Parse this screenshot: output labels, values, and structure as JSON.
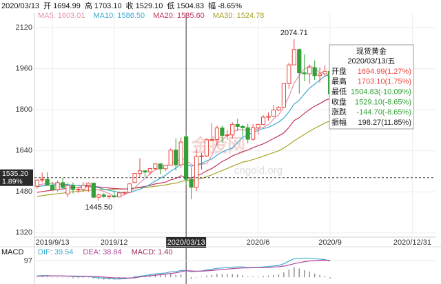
{
  "chart_data": [
    {
      "type": "candlestick",
      "header": {
        "date": "2020/03/13",
        "items": [
          {
            "label": "开",
            "value": "1694.99"
          },
          {
            "label": "高",
            "value": "1703.10"
          },
          {
            "label": "收",
            "value": "1529.10"
          },
          {
            "label": "低",
            "value": "1504.83"
          },
          {
            "label": "幅",
            "value": "-8.65%"
          }
        ]
      },
      "categories": [
        null,
        null,
        null,
        "2019/9/13",
        null,
        null,
        null,
        null,
        null,
        null,
        null,
        null,
        null,
        null,
        null,
        "2019/12",
        null,
        null,
        null,
        null,
        null,
        null,
        null,
        null,
        null,
        null,
        null,
        null,
        null,
        "2020/03/13",
        null,
        null,
        null,
        null,
        null,
        null,
        null,
        null,
        null,
        null,
        null,
        null,
        null,
        "2020/6",
        null,
        null,
        null,
        null,
        null,
        null,
        null,
        null,
        null,
        null,
        null,
        null,
        null,
        "2020/9",
        null,
        null,
        null,
        null,
        null,
        null,
        null,
        null,
        null,
        null,
        null,
        null,
        null,
        null,
        null,
        "2020/12/31",
        null,
        null,
        null,
        null
      ],
      "open": [
        1502,
        1527,
        1529,
        1506,
        1488,
        1516,
        1472,
        1505,
        1489,
        1490,
        1505,
        1514,
        1459,
        1468,
        1462,
        1464,
        1460,
        1476,
        1478,
        1517,
        1552,
        1562,
        1557,
        1571,
        1589,
        1570,
        1584,
        1643,
        1585,
        1694.99,
        1529,
        1498,
        1618,
        1620,
        1683,
        1684,
        1729,
        1700,
        1702,
        1743,
        1735,
        1730,
        1685,
        1730,
        1743,
        1771,
        1775,
        1799,
        1810,
        1902,
        1975,
        2035,
        1944,
        1940,
        1964,
        1933,
        1940,
        1950,
        null,
        null,
        null,
        null,
        null,
        null,
        null,
        null,
        null,
        null,
        null,
        null,
        null,
        null,
        null,
        null,
        null,
        null,
        null,
        null
      ],
      "high": [
        1527,
        1555,
        1557,
        1518,
        1525,
        1535,
        1515,
        1517,
        1499,
        1518,
        1517,
        1514,
        1474,
        1475,
        1466,
        1485,
        1481,
        1481,
        1514,
        1553,
        1611,
        1564,
        1573,
        1590,
        1590,
        1585,
        1649,
        1689,
        1692,
        1703.1,
        1576,
        1645,
        1632,
        1690,
        1748,
        1738,
        1738,
        1722,
        1751,
        1765,
        1741,
        1745,
        1745,
        1745,
        1779,
        1789,
        1818,
        1814,
        1902,
        1984,
        2074.71,
        2039,
        2016,
        1976,
        1992,
        1966,
        1973,
        1950,
        null,
        null,
        null,
        null,
        null,
        null,
        null,
        null,
        null,
        null,
        null,
        null,
        null,
        null,
        null,
        null,
        null,
        null,
        null,
        null
      ],
      "low": [
        1492,
        1517,
        1506,
        1485,
        1482,
        1490,
        1459,
        1474,
        1476,
        1479,
        1480,
        1456,
        1445.5,
        1456,
        1452,
        1458,
        1459,
        1470,
        1478,
        1517,
        1535,
        1537,
        1546,
        1563,
        1548,
        1561,
        1583,
        1563,
        1575,
        1504.83,
        1451,
        1483,
        1567,
        1615,
        1680,
        1660,
        1672,
        1683,
        1689,
        1717,
        1699,
        1670,
        1680,
        1703,
        1741,
        1757,
        1772,
        1795,
        1808,
        1882,
        1975,
        1863,
        1911,
        1902,
        1916,
        1906,
        1931,
        1848,
        null,
        null,
        null,
        null,
        null,
        null,
        null,
        null,
        null,
        null,
        null,
        null,
        null,
        null,
        null,
        null,
        null,
        null,
        null,
        null
      ],
      "close": [
        1526,
        1529,
        1506,
        1488,
        1516,
        1497,
        1505,
        1489,
        1490,
        1505,
        1514,
        1459,
        1468,
        1462,
        1464,
        1460,
        1476,
        1478,
        1511,
        1552,
        1562,
        1557,
        1571,
        1589,
        1570,
        1584,
        1643,
        1585,
        1674,
        1529.1,
        1498,
        1618,
        1620,
        1683,
        1684,
        1729,
        1700,
        1702,
        1743,
        1735,
        1730,
        1685,
        1730,
        1743,
        1771,
        1775,
        1799,
        1810,
        1902,
        1975,
        2035,
        1944,
        1940,
        1964,
        1933,
        1940,
        1950,
        1862,
        null,
        null,
        null,
        null,
        null,
        null,
        null,
        null,
        null,
        null,
        null,
        null,
        null,
        null,
        null,
        null,
        null,
        null,
        null,
        null
      ],
      "up_color": "#e8453c",
      "down_color": "#33a038",
      "series": [
        {
          "name": "MA5: 1603.01",
          "color": "#e391a6",
          "values": [
            1505,
            1510,
            1512,
            1513,
            1513,
            1507,
            1502,
            1499,
            1497,
            1497,
            1501,
            1491,
            1487,
            1482,
            1473,
            1463,
            1466,
            1468,
            1478,
            1495,
            1516,
            1532,
            1551,
            1566,
            1570,
            1574,
            1591,
            1594,
            1613,
            1603.01,
            1586,
            1581,
            1588,
            1590,
            1621,
            1667,
            1683,
            1700,
            1712,
            1722,
            1722,
            1719,
            1725,
            1725,
            1732,
            1741,
            1764,
            1780,
            1811,
            1852,
            1904,
            1933,
            1959,
            1972,
            1963,
            1944,
            1945,
            1930,
            null,
            null,
            null,
            null,
            null,
            null,
            null,
            null,
            null,
            null,
            null,
            null,
            null,
            null,
            null,
            null,
            null,
            null,
            null,
            null
          ]
        },
        {
          "name": "MA10: 1586.50",
          "color": "#3ea9cf",
          "values": [
            1500,
            1503,
            1505,
            1507,
            1509,
            1510,
            1508,
            1506,
            1504,
            1505,
            1506,
            1499,
            1496,
            1490,
            1486,
            1482,
            1478,
            1475,
            1477,
            1484,
            1490,
            1499,
            1509,
            1522,
            1533,
            1545,
            1561,
            1572,
            1589,
            1586.5,
            1580,
            1586,
            1591,
            1601,
            1608,
            1623,
            1635,
            1644,
            1651,
            1671,
            1694,
            1701,
            1713,
            1719,
            1727,
            1731,
            1741,
            1752,
            1768,
            1792,
            1822,
            1837,
            1862,
            1884,
            1900,
            1916,
            1931,
            1936,
            null,
            null,
            null,
            null,
            null,
            null,
            null,
            null,
            null,
            null,
            null,
            null,
            null,
            null,
            null,
            null,
            null,
            null,
            null,
            null
          ]
        },
        {
          "name": "MA20: 1535.60",
          "color": "#c2345a",
          "values": [
            1478,
            1481,
            1484,
            1486,
            1489,
            1491,
            1494,
            1496,
            1498,
            1500,
            1503,
            1501,
            1499,
            1497,
            1495,
            1493,
            1492,
            1491,
            1492,
            1495,
            1498,
            1501,
            1505,
            1511,
            1514,
            1518,
            1527,
            1532,
            1543,
            1535.6,
            1534,
            1542,
            1550,
            1562,
            1571,
            1584,
            1598,
            1608,
            1620,
            1628,
            1637,
            1643,
            1652,
            1660,
            1667,
            1677,
            1688,
            1698,
            1710,
            1731,
            1758,
            1769,
            1786,
            1801,
            1814,
            1824,
            1836,
            1844,
            null,
            null,
            null,
            null,
            null,
            null,
            null,
            null,
            null,
            null,
            null,
            null,
            null,
            null,
            null,
            null,
            null,
            null,
            null,
            null
          ]
        },
        {
          "name": "MA30: 1524.78",
          "color": "#a8a22a",
          "values": [
            1462,
            1465,
            1468,
            1470,
            1473,
            1475,
            1478,
            1480,
            1482,
            1484,
            1486,
            1487,
            1488,
            1489,
            1490,
            1490,
            1491,
            1491,
            1492,
            1494,
            1496,
            1497,
            1499,
            1502,
            1504,
            1507,
            1511,
            1514,
            1520,
            1524.78,
            1524,
            1528,
            1532,
            1539,
            1546,
            1555,
            1563,
            1571,
            1580,
            1588,
            1596,
            1600,
            1606,
            1612,
            1619,
            1626,
            1633,
            1640,
            1651,
            1664,
            1679,
            1691,
            1704,
            1716,
            1728,
            1738,
            1748,
            1757,
            null,
            null,
            null,
            null,
            null,
            null,
            null,
            null,
            null,
            null,
            null,
            null,
            null,
            null,
            null,
            null,
            null,
            null,
            null,
            null
          ]
        }
      ],
      "ylim": [
        1290,
        2150
      ],
      "yticks": [
        1320,
        1480,
        1640,
        1800,
        1960,
        2120
      ],
      "grid": true,
      "annotations": [
        {
          "label": "2074.71",
          "value": 2074.71
        },
        {
          "label": "1445.50",
          "value": 1445.5
        }
      ],
      "crosshair": {
        "value": 1535.2,
        "label": "1535.20",
        "change": "1.89%"
      },
      "tooltip": {
        "title": "现货黄金",
        "date": "2020/03/13/五",
        "rows": [
          {
            "label": "开盘",
            "value": "1694.99(1.27%)",
            "color": "#e8453c"
          },
          {
            "label": "最高",
            "value": "1703.10(1.75%)",
            "color": "#e8453c"
          },
          {
            "label": "最低",
            "value": "1504.83(-10.09%)",
            "color": "#33a038"
          },
          {
            "label": "收盘",
            "value": "1529.10(-8.65%)",
            "color": "#33a038"
          },
          {
            "label": "涨跌",
            "value": "-144.70(-8.65%)",
            "color": "#33a038"
          },
          {
            "label": "振幅",
            "value": "198.27(11.85%)",
            "color": "#222222"
          }
        ]
      },
      "watermark": [
        "金投网",
        "cngold.org"
      ]
    },
    {
      "type": "macd",
      "title": "MACD",
      "series": [
        {
          "name": "DIF: 39.54",
          "color": "#3ea9cf",
          "values": [
            8,
            10,
            10,
            8,
            8,
            7,
            6,
            4,
            3,
            3,
            4,
            0,
            -3,
            -6,
            -8,
            -10,
            -10,
            -9,
            -6,
            0,
            6,
            10,
            15,
            20,
            22,
            25,
            32,
            33,
            40,
            39.54,
            32,
            35,
            37,
            43,
            47,
            53,
            55,
            57,
            60,
            61,
            61,
            57,
            58,
            58,
            61,
            63,
            67,
            70,
            80,
            95,
            110,
            112,
            113,
            113,
            110,
            107,
            104,
            96,
            null,
            null,
            null,
            null,
            null,
            null,
            null,
            null,
            null,
            null,
            null,
            null,
            null,
            null,
            null,
            null,
            null,
            null,
            null,
            null
          ]
        },
        {
          "name": "DEA: 38.84",
          "color": "#b0479a",
          "values": [
            6,
            7,
            8,
            8,
            8,
            8,
            7,
            7,
            6,
            5,
            5,
            4,
            3,
            1,
            -1,
            -3,
            -4,
            -5,
            -5,
            -4,
            2,
            5,
            8,
            12,
            15,
            18,
            22,
            26,
            32,
            38.84,
            37,
            36,
            36,
            38,
            40,
            43,
            46,
            48,
            51,
            53,
            55,
            55,
            56,
            56,
            57,
            58,
            60,
            62,
            66,
            72,
            80,
            86,
            92,
            96,
            99,
            100,
            101,
            100,
            null,
            null,
            null,
            null,
            null,
            null,
            null,
            null,
            null,
            null,
            null,
            null,
            null,
            null,
            null,
            null,
            null,
            null,
            null,
            null
          ]
        },
        {
          "name": "MACD: 1.40",
          "color": "#9c2a5c",
          "kind": "bar",
          "bar_color": "#8a8a8a",
          "values": [
            4,
            6,
            4,
            0,
            0,
            -2,
            -2,
            -6,
            -6,
            -4,
            -2,
            -8,
            -12,
            -14,
            -14,
            -14,
            -12,
            -8,
            -2,
            8,
            8,
            10,
            14,
            16,
            14,
            14,
            20,
            14,
            16,
            1.4,
            -10,
            -2,
            2,
            10,
            14,
            20,
            18,
            18,
            18,
            16,
            12,
            4,
            4,
            4,
            8,
            10,
            14,
            16,
            28,
            46,
            60,
            52,
            42,
            34,
            22,
            14,
            6,
            -8,
            null,
            null,
            null,
            null,
            null,
            null,
            null,
            null,
            null,
            null,
            null,
            null,
            null,
            null,
            null,
            null,
            null,
            null,
            null,
            null
          ]
        }
      ],
      "ylim": [
        -40,
        180
      ],
      "yticks": [
        97
      ]
    }
  ]
}
